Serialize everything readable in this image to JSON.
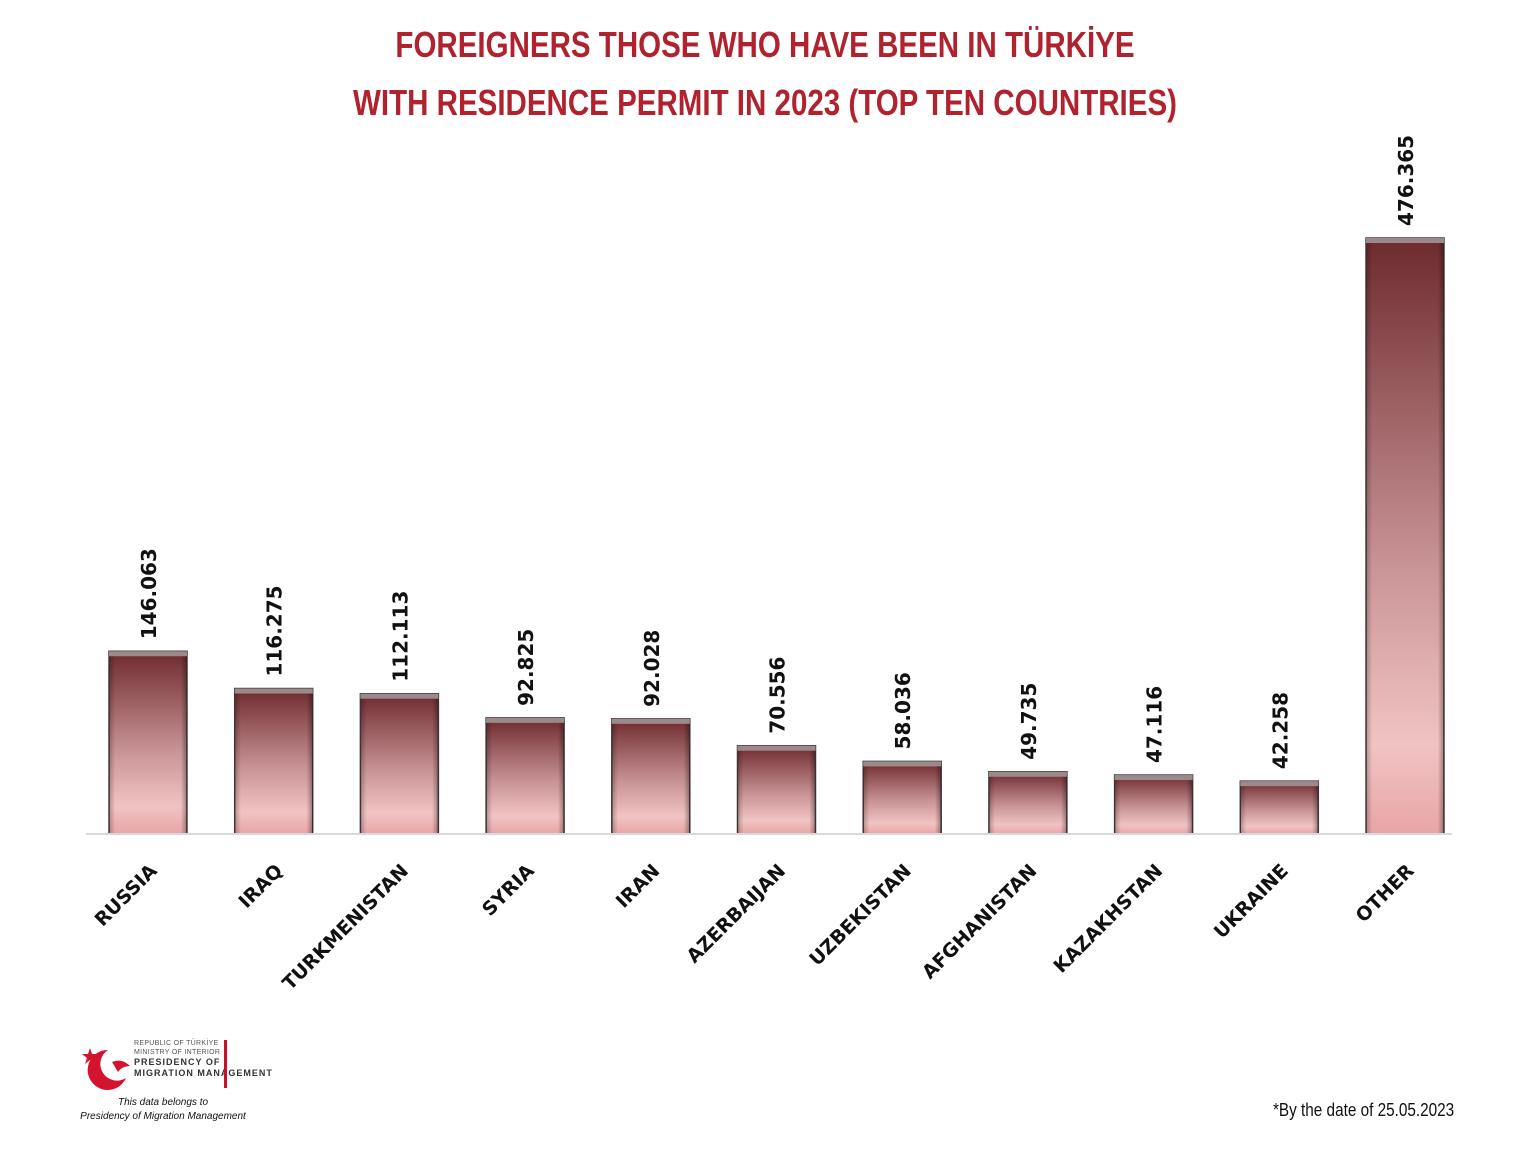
{
  "title_lines": [
    "FOREIGNERS THOSE WHO HAVE BEEN IN TÜRKİYE",
    "WITH RESIDENCE PERMIT IN 2023 (TOP TEN COUNTRIES)"
  ],
  "colors": {
    "title": "#b0232e",
    "bar_dark": "#6e2a2e",
    "bar_light": "#f1c3c3",
    "baseline": "#d9d9d9"
  },
  "chart_data": {
    "type": "bar",
    "title": "FOREIGNERS THOSE WHO HAVE BEEN IN TÜRKİYE WITH RESIDENCE PERMIT IN 2023 (TOP TEN COUNTRIES)",
    "categories": [
      "RUSSIA",
      "IRAQ",
      "TURKMENISTAN",
      "SYRIA",
      "IRAN",
      "AZERBAIJAN",
      "UZBEKISTAN",
      "AFGHANISTAN",
      "KAZAKHSTAN",
      "UKRAINE",
      "OTHER"
    ],
    "values": [
      146063,
      116275,
      112113,
      92825,
      92028,
      70556,
      58036,
      49735,
      47116,
      42258,
      476365
    ],
    "value_labels": [
      "146.063",
      "116.275",
      "112.113",
      "92.825",
      "92.028",
      "70.556",
      "58.036",
      "49.735",
      "47.116",
      "42.258",
      "476.365"
    ],
    "xlabel": "",
    "ylabel": "",
    "ylim": [
      0,
      476365
    ],
    "grid": false,
    "legend": "none"
  },
  "logo": {
    "line1": "REPUBLIC OF TÜRKİYE",
    "line2": "MINISTRY OF INTERIOR",
    "line3": "PRESIDENCY OF",
    "line4": "MIGRATION MANAGEMENT",
    "icon": "crescent-star-bird-emblem"
  },
  "source_note_line1": "This data belongs to",
  "source_note_line2": "Presidency of Migration Management",
  "footnote": "*By the date of 25.05.2023"
}
